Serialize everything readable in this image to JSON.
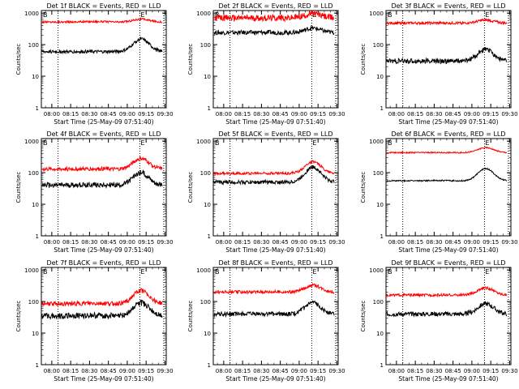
{
  "page": {
    "background": "#ffffff",
    "axis_color": "#000000"
  },
  "x_ticks": [
    "08:00",
    "08:15",
    "08:30",
    "08:45",
    "09:00",
    "09:15",
    "09:30"
  ],
  "x_tick_minutes": [
    0,
    15,
    30,
    45,
    60,
    75,
    90
  ],
  "x_range_minutes": [
    -8.3,
    91.0
  ],
  "y_ticks": [
    1,
    10,
    100,
    1000
  ],
  "y_tick_labels": [
    "1",
    "10",
    "100",
    "1000"
  ],
  "y_range": [
    1,
    1200
  ],
  "y_scale": "log",
  "ylabel": "Counts/sec",
  "xlabel": "Start Time (25-May-09 07:51:40)",
  "marker_labels": {
    "start": "B",
    "end": "E"
  },
  "series_colors": {
    "events": "#000000",
    "lld": "#ff0000"
  },
  "chart_data": [
    {
      "type": "line",
      "title": "Det 1f BLACK = Events, RED = LLD",
      "markers_minutes": [
        5,
        70,
        89
      ],
      "events": {
        "base": 60,
        "peak": 150,
        "dip": 60,
        "noise": 0.05
      },
      "lld": {
        "base": 520,
        "peak": 640,
        "dip": 460,
        "noise": 0.03
      }
    },
    {
      "type": "line",
      "title": "Det 2f BLACK = Events, RED = LLD",
      "markers_minutes": [
        5,
        70,
        89
      ],
      "events": {
        "base": 240,
        "peak": 330,
        "dip": 230,
        "noise": 0.07
      },
      "lld": {
        "base": 700,
        "peak": 950,
        "dip": 700,
        "noise": 0.1
      }
    },
    {
      "type": "line",
      "title": "Det 3f BLACK = Events, RED = LLD",
      "markers_minutes": [
        5,
        70,
        89
      ],
      "events": {
        "base": 30,
        "peak": 70,
        "dip": 30,
        "noise": 0.08
      },
      "lld": {
        "base": 480,
        "peak": 600,
        "dip": 470,
        "noise": 0.04
      }
    },
    {
      "type": "line",
      "title": "Det 4f BLACK = Events, RED = LLD",
      "markers_minutes": [
        5,
        70,
        89
      ],
      "events": {
        "base": 40,
        "peak": 100,
        "dip": 35,
        "noise": 0.08
      },
      "lld": {
        "base": 130,
        "peak": 280,
        "dip": 120,
        "noise": 0.06
      }
    },
    {
      "type": "line",
      "title": "Det 5f BLACK = Events, RED = LLD",
      "markers_minutes": [
        5,
        70,
        89
      ],
      "events": {
        "base": 50,
        "peak": 150,
        "dip": 50,
        "noise": 0.06
      },
      "lld": {
        "base": 95,
        "peak": 220,
        "dip": 90,
        "noise": 0.04
      }
    },
    {
      "type": "line",
      "title": "Det 6f BLACK = Events, RED = LLD",
      "markers_minutes": [
        5,
        70,
        89
      ],
      "events": {
        "base": 55,
        "peak": 135,
        "dip": 50,
        "noise": 0.02
      },
      "lld": {
        "base": 430,
        "peak": 620,
        "dip": 420,
        "noise": 0.02
      }
    },
    {
      "type": "line",
      "title": "Det 7f BLACK = Events, RED = LLD",
      "markers_minutes": [
        5,
        70,
        89
      ],
      "events": {
        "base": 35,
        "peak": 90,
        "dip": 30,
        "noise": 0.09
      },
      "lld": {
        "base": 85,
        "peak": 220,
        "dip": 80,
        "noise": 0.07
      }
    },
    {
      "type": "line",
      "title": "Det 8f BLACK = Events, RED = LLD",
      "markers_minutes": [
        5,
        70,
        89
      ],
      "events": {
        "base": 40,
        "peak": 90,
        "dip": 38,
        "noise": 0.07
      },
      "lld": {
        "base": 200,
        "peak": 330,
        "dip": 190,
        "noise": 0.05
      }
    },
    {
      "type": "line",
      "title": "Det 9f BLACK = Events, RED = LLD",
      "markers_minutes": [
        5,
        70,
        89
      ],
      "events": {
        "base": 40,
        "peak": 85,
        "dip": 38,
        "noise": 0.07
      },
      "lld": {
        "base": 160,
        "peak": 270,
        "dip": 160,
        "noise": 0.04
      }
    }
  ]
}
